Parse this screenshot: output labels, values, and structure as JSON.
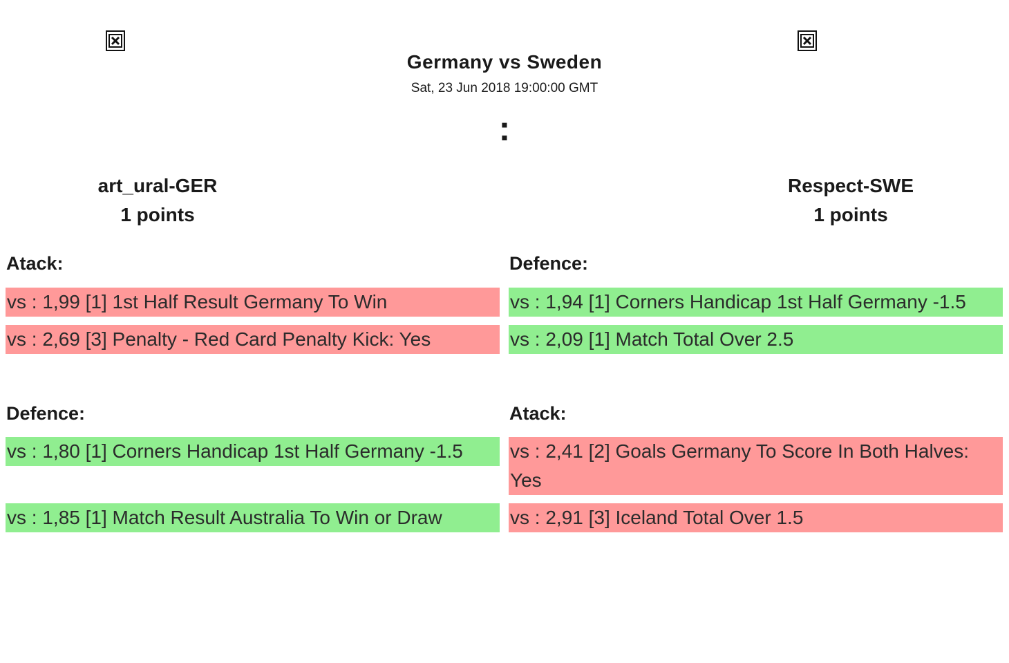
{
  "match": {
    "title": "Germany vs Sweden",
    "date": "Sat, 23 Jun 2018 19:00:00 GMT",
    "score_separator": ":"
  },
  "left": {
    "flag_icon": "broken-image-icon",
    "player": "art_ural-GER",
    "points": "1 points",
    "sections": [
      {
        "heading": "Atack:",
        "bets": [
          {
            "text": "vs : 1,99 [1] 1st Half Result Germany To Win",
            "status": "lose",
            "color": "#ff9999"
          },
          {
            "text": "vs : 2,69 [3] Penalty - Red Card Penalty Kick: Yes",
            "status": "lose",
            "color": "#ff9999"
          }
        ]
      },
      {
        "heading": "Defence:",
        "bets": [
          {
            "text": "vs : 1,80 [1] Corners Handicap 1st Half Germany -1.5",
            "status": "win",
            "color": "#90ee90"
          },
          {
            "text": "vs : 1,85 [1] Match Result Australia To Win or Draw",
            "status": "win",
            "color": "#90ee90"
          }
        ]
      }
    ]
  },
  "right": {
    "flag_icon": "broken-image-icon",
    "player": "Respect-SWE",
    "points": "1 points",
    "sections": [
      {
        "heading": "Defence:",
        "bets": [
          {
            "text": "vs : 1,94 [1] Corners Handicap 1st Half Germany -1.5",
            "status": "win",
            "color": "#90ee90"
          },
          {
            "text": "vs : 2,09 [1] Match Total Over 2.5",
            "status": "win",
            "color": "#90ee90"
          }
        ]
      },
      {
        "heading": "Atack:",
        "bets": [
          {
            "text": "vs : 2,41 [2] Goals Germany To Score In Both Halves: Yes",
            "status": "lose",
            "color": "#ff9999"
          },
          {
            "text": "vs : 2,91 [3] Iceland Total Over 1.5",
            "status": "lose",
            "color": "#ff9999"
          }
        ]
      }
    ]
  }
}
